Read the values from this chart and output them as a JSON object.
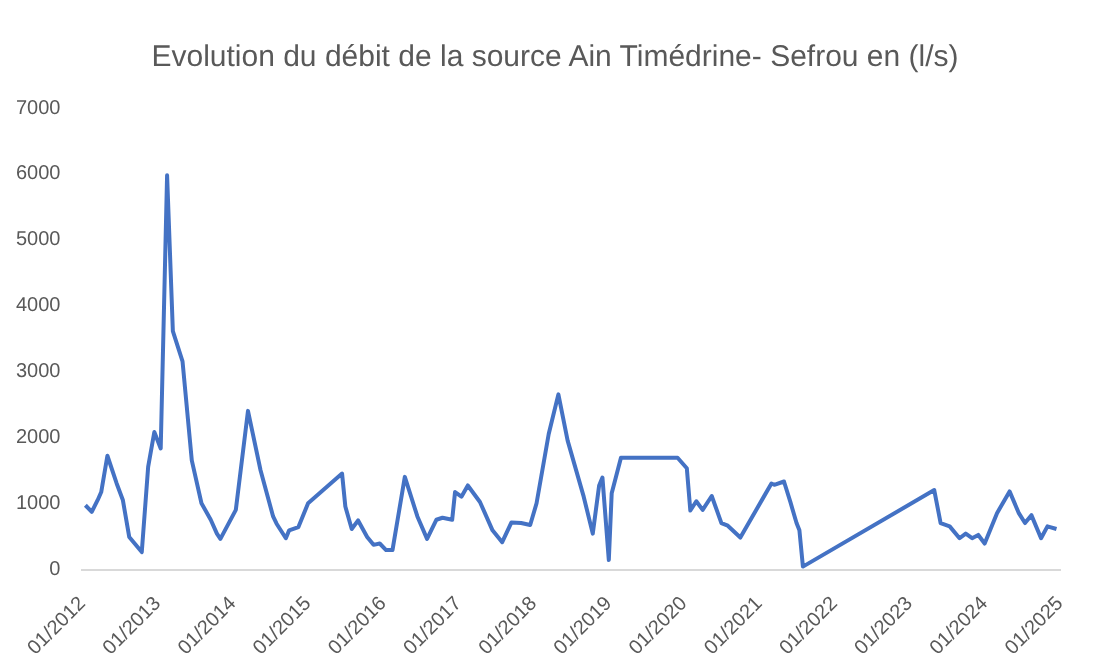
{
  "chart_data": {
    "type": "line",
    "title": "Evolution du débit de la source Ain Timédrine- Sefrou en (l/s)",
    "x": [
      "2012-01-15",
      "2012-02-15",
      "2012-03-15",
      "2012-04-01",
      "2012-05-01",
      "2012-06-15",
      "2012-07-15",
      "2012-08-15",
      "2012-10-15",
      "2012-11-15",
      "2012-12-15",
      "2013-01-15",
      "2013-02-15",
      "2013-03-15",
      "2013-05-01",
      "2013-06-15",
      "2013-08-01",
      "2013-09-15",
      "2013-10-15",
      "2013-11-01",
      "2014-01-15",
      "2014-03-15",
      "2014-05-15",
      "2014-07-15",
      "2014-08-01",
      "2014-09-15",
      "2014-10-01",
      "2014-11-15",
      "2015-01-01",
      "2015-06-15",
      "2015-07-01",
      "2015-08-01",
      "2015-09-01",
      "2015-10-15",
      "2015-11-15",
      "2015-12-15",
      "2016-01-15",
      "2016-02-15",
      "2016-04-15",
      "2016-06-15",
      "2016-08-01",
      "2016-09-15",
      "2016-10-15",
      "2016-12-01",
      "2016-12-15",
      "2017-01-15",
      "2017-02-15",
      "2017-04-15",
      "2017-06-15",
      "2017-08-01",
      "2017-09-15",
      "2017-11-01",
      "2017-12-15",
      "2018-01-15",
      "2018-03-15",
      "2018-05-01",
      "2018-06-15",
      "2018-09-01",
      "2018-10-15",
      "2018-11-15",
      "2018-12-01",
      "2019-01-01",
      "2019-01-15",
      "2019-03-01",
      "2019-12-01",
      "2020-01-15",
      "2020-02-01",
      "2020-03-01",
      "2020-04-01",
      "2020-05-15",
      "2020-07-01",
      "2020-08-01",
      "2020-10-01",
      "2021-03-01",
      "2021-03-15",
      "2021-05-01",
      "2021-06-01",
      "2021-07-01",
      "2021-07-15",
      "2021-08-01",
      "2023-05-01",
      "2023-06-01",
      "2023-07-15",
      "2023-09-01",
      "2023-10-01",
      "2023-11-01",
      "2023-12-01",
      "2024-01-01",
      "2024-03-01",
      "2024-05-01",
      "2024-06-15",
      "2024-07-15",
      "2024-08-15",
      "2024-10-01",
      "2024-11-01",
      "2024-12-15"
    ],
    "series": [
      {
        "color": "#4472c4",
        "values": [
          980,
          880,
          1060,
          1180,
          1730,
          1310,
          1060,
          500,
          270,
          1560,
          2090,
          1840,
          5980,
          3620,
          3160,
          1660,
          1010,
          760,
          550,
          470,
          910,
          2410,
          1510,
          810,
          700,
          480,
          600,
          650,
          1010,
          1460,
          960,
          620,
          750,
          500,
          380,
          400,
          300,
          300,
          1410,
          810,
          470,
          760,
          790,
          760,
          1180,
          1110,
          1280,
          1030,
          600,
          420,
          720,
          710,
          680,
          1010,
          2060,
          2660,
          1960,
          1110,
          550,
          1280,
          1400,
          150,
          1160,
          1700,
          1700,
          1540,
          900,
          1040,
          910,
          1120,
          710,
          670,
          490,
          1310,
          1290,
          1340,
          1030,
          710,
          600,
          50,
          1210,
          710,
          660,
          480,
          550,
          480,
          530,
          400,
          860,
          1190,
          860,
          710,
          830,
          480,
          660,
          620
        ]
      }
    ],
    "xlim": [
      "2012-01",
      "2025-01"
    ],
    "xticks": [
      {
        "value": "2012-01",
        "label": "01/2012"
      },
      {
        "value": "2013-01",
        "label": "01/2013"
      },
      {
        "value": "2014-01",
        "label": "01/2014"
      },
      {
        "value": "2015-01",
        "label": "01/2015"
      },
      {
        "value": "2016-01",
        "label": "01/2016"
      },
      {
        "value": "2017-01",
        "label": "01/2017"
      },
      {
        "value": "2018-01",
        "label": "01/2018"
      },
      {
        "value": "2019-01",
        "label": "01/2019"
      },
      {
        "value": "2020-01",
        "label": "01/2020"
      },
      {
        "value": "2021-01",
        "label": "01/2021"
      },
      {
        "value": "2022-01",
        "label": "01/2022"
      },
      {
        "value": "2023-01",
        "label": "01/2023"
      },
      {
        "value": "2024-01",
        "label": "01/2024"
      },
      {
        "value": "2025-01",
        "label": "01/2025"
      }
    ],
    "ylim": [
      0,
      7000
    ],
    "yticks": [
      0,
      1000,
      2000,
      3000,
      4000,
      5000,
      6000,
      7000
    ],
    "grid": false,
    "legend": false,
    "marker": "none",
    "line_style": "solid"
  }
}
